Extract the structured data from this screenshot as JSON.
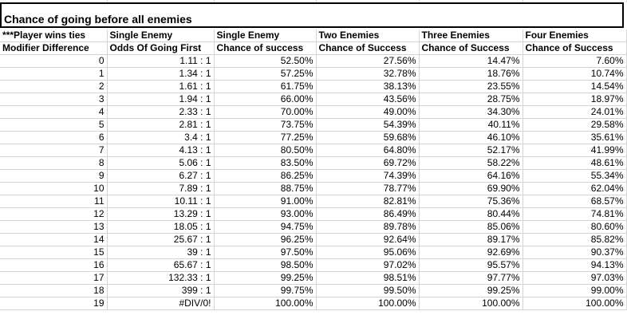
{
  "title": "Chance of going before all enemies",
  "headers_row1": [
    "***Player wins ties",
    "Single Enemy",
    "Single Enemy",
    "Two Enemies",
    "Three Enemies",
    "Four Enemies"
  ],
  "headers_row2": [
    "Modifier Difference",
    "Odds Of Going First",
    "Chance of success",
    "Chance of Success",
    "Chance of Success",
    "Chance of Success"
  ],
  "rows": [
    [
      "0",
      "1.11 : 1",
      "52.50%",
      "27.56%",
      "14.47%",
      "7.60%"
    ],
    [
      "1",
      "1.34 : 1",
      "57.25%",
      "32.78%",
      "18.76%",
      "10.74%"
    ],
    [
      "2",
      "1.61 : 1",
      "61.75%",
      "38.13%",
      "23.55%",
      "14.54%"
    ],
    [
      "3",
      "1.94 : 1",
      "66.00%",
      "43.56%",
      "28.75%",
      "18.97%"
    ],
    [
      "4",
      "2.33 : 1",
      "70.00%",
      "49.00%",
      "34.30%",
      "24.01%"
    ],
    [
      "5",
      "2.81 : 1",
      "73.75%",
      "54.39%",
      "40.11%",
      "29.58%"
    ],
    [
      "6",
      "3.4 : 1",
      "77.25%",
      "59.68%",
      "46.10%",
      "35.61%"
    ],
    [
      "7",
      "4.13 : 1",
      "80.50%",
      "64.80%",
      "52.17%",
      "41.99%"
    ],
    [
      "8",
      "5.06 : 1",
      "83.50%",
      "69.72%",
      "58.22%",
      "48.61%"
    ],
    [
      "9",
      "6.27 : 1",
      "86.25%",
      "74.39%",
      "64.16%",
      "55.34%"
    ],
    [
      "10",
      "7.89 : 1",
      "88.75%",
      "78.77%",
      "69.90%",
      "62.04%"
    ],
    [
      "11",
      "10.11 : 1",
      "91.00%",
      "82.81%",
      "75.36%",
      "68.57%"
    ],
    [
      "12",
      "13.29 : 1",
      "93.00%",
      "86.49%",
      "80.44%",
      "74.81%"
    ],
    [
      "13",
      "18.05 : 1",
      "94.75%",
      "89.78%",
      "85.06%",
      "80.60%"
    ],
    [
      "14",
      "25.67 : 1",
      "96.25%",
      "92.64%",
      "89.17%",
      "85.82%"
    ],
    [
      "15",
      "39 : 1",
      "97.50%",
      "95.06%",
      "92.69%",
      "90.37%"
    ],
    [
      "16",
      "65.67 : 1",
      "98.50%",
      "97.02%",
      "95.57%",
      "94.13%"
    ],
    [
      "17",
      "132.33 : 1",
      "99.25%",
      "98.51%",
      "97.77%",
      "97.03%"
    ],
    [
      "18",
      "399 : 1",
      "99.75%",
      "99.50%",
      "99.25%",
      "99.00%"
    ],
    [
      "19",
      "#DIV/0!",
      "100.00%",
      "100.00%",
      "100.00%",
      "100.00%"
    ]
  ]
}
